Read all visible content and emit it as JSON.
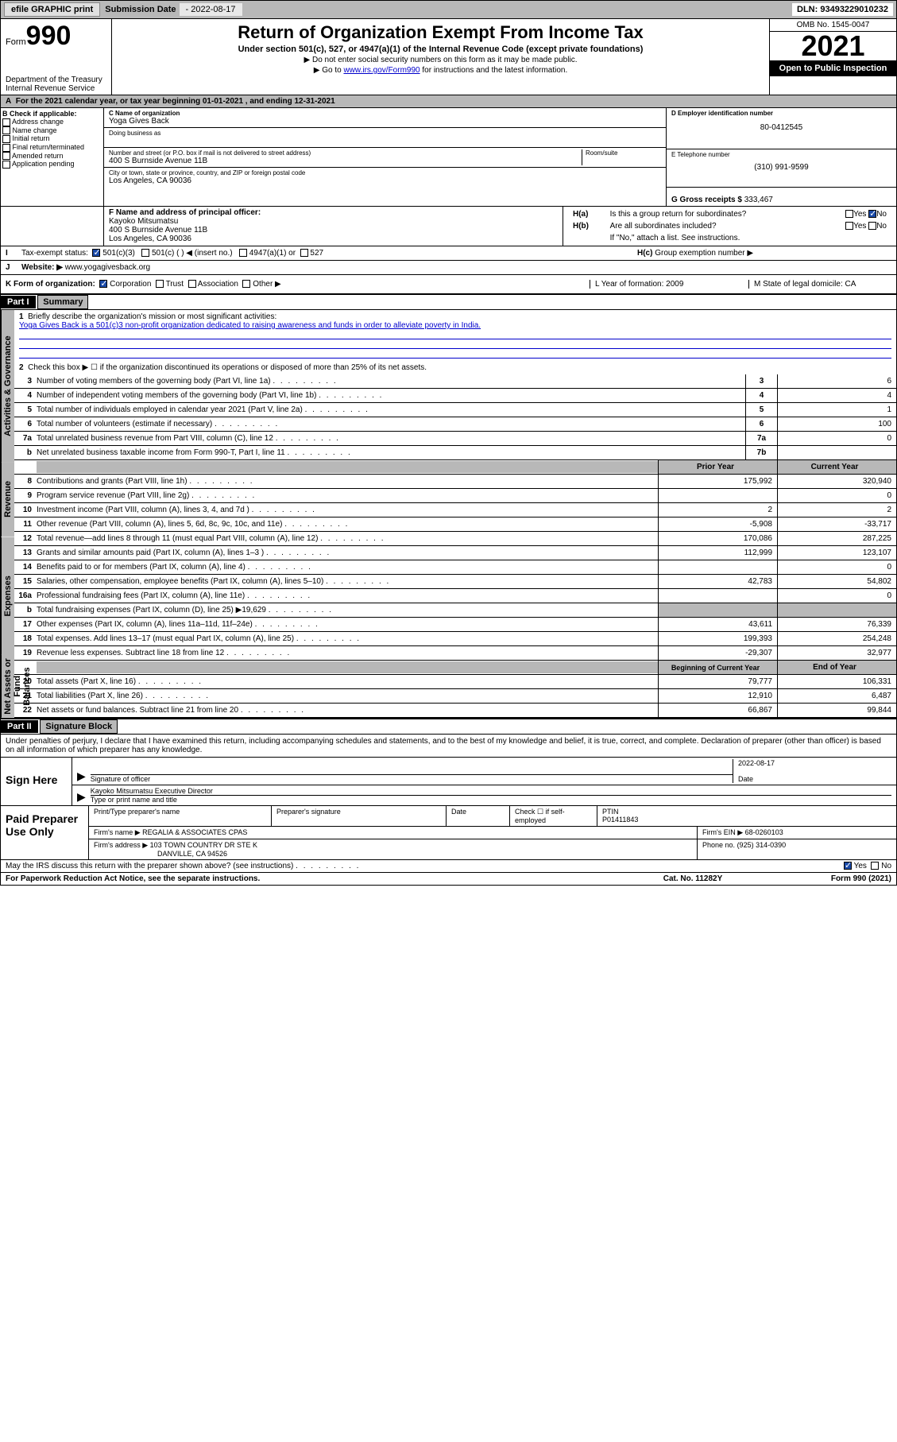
{
  "topbar": {
    "efile_btn": "efile GRAPHIC print",
    "sub_label": "Submission Date",
    "sub_date": "- 2022-08-17",
    "dln_label": "DLN:",
    "dln": "93493229010232"
  },
  "header": {
    "form_word": "Form",
    "form_num": "990",
    "dept": "Department of the Treasury\nInternal Revenue Service",
    "title": "Return of Organization Exempt From Income Tax",
    "subtitle": "Under section 501(c), 527, or 4947(a)(1) of the Internal Revenue Code (except private foundations)",
    "instr1": "Do not enter social security numbers on this form as it may be made public.",
    "instr2_a": "Go to ",
    "instr2_link": "www.irs.gov/Form990",
    "instr2_b": " for instructions and the latest information.",
    "omb": "OMB No. 1545-0047",
    "year": "2021",
    "open": "Open to Public Inspection"
  },
  "A": {
    "text_a": "For the 2021 calendar year, or tax year beginning ",
    "begin": "01-01-2021",
    "text_b": " , and ending ",
    "end": "12-31-2021"
  },
  "B": {
    "header": "B Check if applicable:",
    "items": [
      "Address change",
      "Name change",
      "Initial return",
      "Final return/terminated",
      "Amended return",
      "Application pending"
    ]
  },
  "C": {
    "name_label": "C Name of organization",
    "name": "Yoga Gives Back",
    "dba_label": "Doing business as",
    "addr_label": "Number and street (or P.O. box if mail is not delivered to street address)",
    "room_label": "Room/suite",
    "addr": "400 S Burnside Avenue 11B",
    "city_label": "City or town, state or province, country, and ZIP or foreign postal code",
    "city": "Los Angeles, CA  90036"
  },
  "D": {
    "label": "D Employer identification number",
    "val": "80-0412545"
  },
  "E": {
    "label": "E Telephone number",
    "val": "(310) 991-9599"
  },
  "G": {
    "label": "G Gross receipts $",
    "val": "333,467"
  },
  "F": {
    "label": "F  Name and address of principal officer:",
    "name": "Kayoko Mitsumatsu",
    "addr1": "400 S Burnside Avenue 11B",
    "addr2": "Los Angeles, CA  90036"
  },
  "H": {
    "a": "Is this a group return for subordinates?",
    "b": "Are all subordinates included?",
    "b_note": "If \"No,\" attach a list. See instructions.",
    "c": "Group exemption number ▶"
  },
  "I": {
    "label": "Tax-exempt status:",
    "opts": [
      "501(c)(3)",
      "501(c) (  ) ◀ (insert no.)",
      "4947(a)(1) or",
      "527"
    ]
  },
  "J": {
    "label": "Website: ▶",
    "val": "www.yogagivesback.org"
  },
  "K": {
    "label": "K Form of organization:",
    "opts": [
      "Corporation",
      "Trust",
      "Association",
      "Other ▶"
    ],
    "L": "L Year of formation: 2009",
    "M": "M State of legal domicile: CA"
  },
  "partI": {
    "hdr": "Part I",
    "title": "Summary",
    "line1_label": "Briefly describe the organization's mission or most significant activities:",
    "mission": "Yoga Gives Back is a 501(c)3 non-profit organization dedicated to raising awareness and funds in order to alleviate poverty in India.",
    "line2": "Check this box ▶ ☐  if the organization discontinued its operations or disposed of more than 25% of its net assets.",
    "sections": {
      "gov": "Activities & Governance",
      "rev": "Revenue",
      "exp": "Expenses",
      "net": "Net Assets or Fund Balances"
    },
    "gov_lines": [
      {
        "n": "3",
        "t": "Number of voting members of the governing body (Part VI, line 1a)",
        "box": "3",
        "v": "6"
      },
      {
        "n": "4",
        "t": "Number of independent voting members of the governing body (Part VI, line 1b)",
        "box": "4",
        "v": "4"
      },
      {
        "n": "5",
        "t": "Total number of individuals employed in calendar year 2021 (Part V, line 2a)",
        "box": "5",
        "v": "1"
      },
      {
        "n": "6",
        "t": "Total number of volunteers (estimate if necessary)",
        "box": "6",
        "v": "100"
      },
      {
        "n": "7a",
        "t": "Total unrelated business revenue from Part VIII, column (C), line 12",
        "box": "7a",
        "v": "0"
      },
      {
        "n": "b",
        "t": "Net unrelated business taxable income from Form 990-T, Part I, line 11",
        "box": "7b",
        "v": ""
      }
    ],
    "col_prior": "Prior Year",
    "col_current": "Current Year",
    "rev_lines": [
      {
        "n": "8",
        "t": "Contributions and grants (Part VIII, line 1h)",
        "p": "175,992",
        "c": "320,940"
      },
      {
        "n": "9",
        "t": "Program service revenue (Part VIII, line 2g)",
        "p": "",
        "c": "0"
      },
      {
        "n": "10",
        "t": "Investment income (Part VIII, column (A), lines 3, 4, and 7d )",
        "p": "2",
        "c": "2"
      },
      {
        "n": "11",
        "t": "Other revenue (Part VIII, column (A), lines 5, 6d, 8c, 9c, 10c, and 11e)",
        "p": "-5,908",
        "c": "-33,717"
      },
      {
        "n": "12",
        "t": "Total revenue—add lines 8 through 11 (must equal Part VIII, column (A), line 12)",
        "p": "170,086",
        "c": "287,225"
      }
    ],
    "exp_lines": [
      {
        "n": "13",
        "t": "Grants and similar amounts paid (Part IX, column (A), lines 1–3 )",
        "p": "112,999",
        "c": "123,107"
      },
      {
        "n": "14",
        "t": "Benefits paid to or for members (Part IX, column (A), line 4)",
        "p": "",
        "c": "0"
      },
      {
        "n": "15",
        "t": "Salaries, other compensation, employee benefits (Part IX, column (A), lines 5–10)",
        "p": "42,783",
        "c": "54,802"
      },
      {
        "n": "16a",
        "t": "Professional fundraising fees (Part IX, column (A), line 11e)",
        "p": "",
        "c": "0"
      },
      {
        "n": "b",
        "t": "Total fundraising expenses (Part IX, column (D), line 25) ▶19,629",
        "p": "SHADE",
        "c": "SHADE"
      },
      {
        "n": "17",
        "t": "Other expenses (Part IX, column (A), lines 11a–11d, 11f–24e)",
        "p": "43,611",
        "c": "76,339"
      },
      {
        "n": "18",
        "t": "Total expenses. Add lines 13–17 (must equal Part IX, column (A), line 25)",
        "p": "199,393",
        "c": "254,248"
      },
      {
        "n": "19",
        "t": "Revenue less expenses. Subtract line 18 from line 12",
        "p": "-29,307",
        "c": "32,977"
      }
    ],
    "col_begin": "Beginning of Current Year",
    "col_end": "End of Year",
    "net_lines": [
      {
        "n": "20",
        "t": "Total assets (Part X, line 16)",
        "p": "79,777",
        "c": "106,331"
      },
      {
        "n": "21",
        "t": "Total liabilities (Part X, line 26)",
        "p": "12,910",
        "c": "6,487"
      },
      {
        "n": "22",
        "t": "Net assets or fund balances. Subtract line 21 from line 20",
        "p": "66,867",
        "c": "99,844"
      }
    ]
  },
  "partII": {
    "hdr": "Part II",
    "title": "Signature Block",
    "decl": "Under penalties of perjury, I declare that I have examined this return, including accompanying schedules and statements, and to the best of my knowledge and belief, it is true, correct, and complete. Declaration of preparer (other than officer) is based on all information of which preparer has any knowledge."
  },
  "sign": {
    "here": "Sign Here",
    "sig_officer": "Signature of officer",
    "date": "Date",
    "date_val": "2022-08-17",
    "name": "Kayoko Mitsumatsu  Executive Director",
    "name_label": "Type or print name and title"
  },
  "prep": {
    "title": "Paid Preparer Use Only",
    "h1": "Print/Type preparer's name",
    "h2": "Preparer's signature",
    "h3": "Date",
    "h4a": "Check ☐ if self-employed",
    "h4b_label": "PTIN",
    "h4b": "P01411843",
    "firm_name_label": "Firm's name    ▶",
    "firm_name": "REGALIA & ASSOCIATES CPAS",
    "firm_ein_label": "Firm's EIN ▶",
    "firm_ein": "68-0260103",
    "firm_addr_label": "Firm's address ▶",
    "firm_addr1": "103 TOWN COUNTRY DR STE K",
    "firm_addr2": "DANVILLE, CA  94526",
    "phone_label": "Phone no.",
    "phone": "(925) 314-0390"
  },
  "footer": {
    "discuss": "May the IRS discuss this return with the preparer shown above? (see instructions)",
    "paperwork": "For Paperwork Reduction Act Notice, see the separate instructions.",
    "cat": "Cat. No. 11282Y",
    "form": "Form 990 (2021)"
  }
}
